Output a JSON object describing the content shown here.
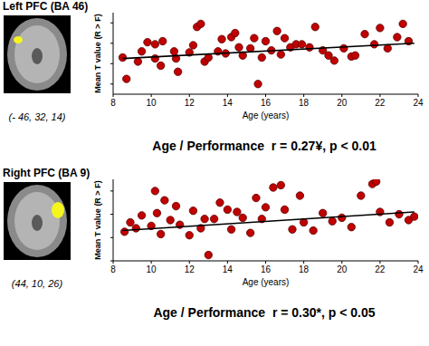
{
  "chart_data": [
    {
      "type": "scatter",
      "title": "Left PFC (BA 46)",
      "subtitle": "(- 46, 32, 14)",
      "annotation": "Age / Performance  r = 0.27¥, p < 0.01",
      "x_label": "Age (years)",
      "y_label": "Mean T value (R > F)",
      "xlim": [
        8,
        24
      ],
      "xticks": [
        8,
        10,
        12,
        14,
        16,
        18,
        20,
        22,
        24
      ],
      "ylim": [
        -3,
        5
      ],
      "yticks": [
        -2,
        0,
        2,
        4
      ],
      "tick_labels": "x",
      "grid": false,
      "series": [
        {
          "type": "scatter",
          "color": "#c00000",
          "marker": "circle",
          "x": [
            8.5,
            8.7,
            9.3,
            9.5,
            9.8,
            10.2,
            10.2,
            10.5,
            10.6,
            11.2,
            11.3,
            11.4,
            12.0,
            12.2,
            12.4,
            12.6,
            12.8,
            13.0,
            13.5,
            13.7,
            13.9,
            14.2,
            14.4,
            14.6,
            14.8,
            15.2,
            15.4,
            15.6,
            15.8,
            16.0,
            16.3,
            16.6,
            16.8,
            17.0,
            17.3,
            17.6,
            17.9,
            18.3,
            18.6,
            19.0,
            19.3,
            19.6,
            20.1,
            20.5,
            20.7,
            21.2,
            21.7,
            22.0,
            22.4,
            22.9,
            23.2,
            23.5
          ],
          "values": [
            0.6,
            -1.5,
            0.2,
            1.2,
            2.1,
            1.9,
            0.5,
            -0.2,
            2.2,
            1.2,
            0.5,
            -0.8,
            1.1,
            1.8,
            3.6,
            3.9,
            0.2,
            0.6,
            1.2,
            2.4,
            1.0,
            2.6,
            3.0,
            1.6,
            0.8,
            1.5,
            2.5,
            -2.0,
            0.6,
            2.2,
            1.3,
            3.2,
            0.9,
            2.5,
            1.6,
            1.9,
            1.9,
            1.6,
            3.6,
            1.3,
            0.8,
            0.3,
            1.5,
            0.7,
            0.8,
            2.9,
            1.9,
            3.5,
            1.5,
            2.6,
            3.9,
            2.2
          ]
        },
        {
          "type": "line",
          "color": "#000000",
          "x": [
            8.5,
            23.8
          ],
          "values": [
            0.5,
            2.0
          ]
        }
      ]
    },
    {
      "type": "scatter",
      "title": "Right PFC (BA 9)",
      "subtitle": "(44, 10, 26)",
      "annotation": "Age / Performance  r = 0.30*, p < 0.05",
      "x_label": "Age (years)",
      "y_label": "Mean T value (R > F)",
      "xlim": [
        8,
        24
      ],
      "xticks": [
        8,
        10,
        12,
        14,
        16,
        18,
        20,
        22,
        24
      ],
      "ylim": [
        -2,
        5
      ],
      "yticks": [
        -2,
        0,
        2,
        4
      ],
      "tick_labels": "x",
      "grid": false,
      "series": [
        {
          "type": "scatter",
          "color": "#c00000",
          "marker": "circle",
          "x": [
            8.6,
            8.9,
            9.2,
            9.5,
            10.0,
            10.2,
            10.3,
            10.5,
            10.7,
            11.0,
            11.3,
            11.5,
            12.0,
            12.2,
            12.6,
            12.8,
            13.0,
            13.3,
            13.6,
            14.0,
            14.2,
            14.5,
            14.8,
            15.2,
            15.5,
            15.8,
            16.0,
            16.4,
            16.8,
            17.0,
            17.4,
            17.8,
            18.0,
            18.5,
            19.0,
            19.5,
            20.0,
            20.5,
            21.0,
            21.6,
            21.8,
            22.0,
            22.5,
            23.0,
            23.5,
            23.8
          ],
          "values": [
            0.5,
            1.3,
            0.8,
            1.9,
            1.0,
            4.0,
            2.1,
            0.3,
            3.2,
            1.5,
            2.7,
            1.1,
            0.2,
            2.3,
            0.8,
            1.6,
            -1.5,
            1.6,
            3.0,
            2.4,
            0.7,
            2.2,
            1.7,
            0.4,
            3.4,
            1.6,
            2.6,
            4.3,
            4.5,
            2.4,
            0.7,
            3.6,
            1.3,
            0.6,
            2.1,
            1.4,
            1.7,
            0.9,
            3.6,
            4.6,
            4.8,
            2.2,
            1.3,
            2.0,
            1.5,
            1.8
          ]
        },
        {
          "type": "line",
          "color": "#000000",
          "x": [
            8.5,
            23.8
          ],
          "values": [
            0.6,
            2.2
          ]
        }
      ]
    }
  ]
}
